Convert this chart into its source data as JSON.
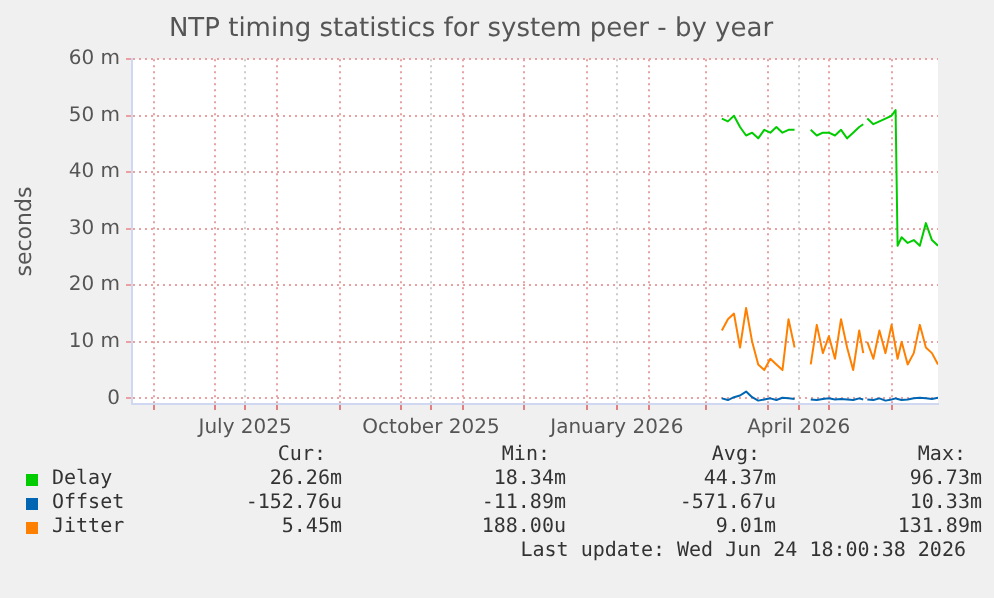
{
  "chart_data": {
    "type": "line",
    "title": "NTP timing statistics for system peer - by year",
    "ylabel": "seconds",
    "x": [
      "2026-03-09",
      "2026-03-12",
      "2026-03-15",
      "2026-03-18",
      "2026-03-21",
      "2026-03-24",
      "2026-03-27",
      "2026-03-30",
      "2026-04-02",
      "2026-04-05",
      "2026-04-08",
      "2026-04-11",
      "2026-04-14",
      "2026-04-18",
      "2026-04-22",
      "2026-04-25",
      "2026-04-28",
      "2026-05-01",
      "2026-05-04",
      "2026-05-07",
      "2026-05-10",
      "2026-05-13",
      "2026-05-16",
      "2026-05-18",
      "2026-05-19",
      "2026-05-20",
      "2026-05-23",
      "2026-05-26",
      "2026-05-29",
      "2026-06-01",
      "2026-06-03",
      "2026-06-04",
      "2026-06-06",
      "2026-06-09",
      "2026-06-12",
      "2026-06-15",
      "2026-06-18",
      "2026-06-21",
      "2026-06-24"
    ],
    "series": [
      {
        "name": "Delay",
        "color": "#00cc00",
        "values": [
          49.5,
          49,
          50,
          48,
          46.5,
          47,
          46,
          47.5,
          47,
          48,
          47,
          47.5,
          47.5,
          null,
          47.5,
          46.5,
          47,
          47,
          46.5,
          47.5,
          46,
          47,
          48,
          48.5,
          null,
          49.5,
          48.5,
          49,
          49.5,
          50,
          51,
          27,
          28.5,
          27.5,
          28,
          27,
          31,
          28,
          27
        ]
      },
      {
        "name": "Offset",
        "color": "#0066b3",
        "values": [
          0,
          -0.3,
          0.2,
          0.5,
          1.2,
          0.2,
          -0.4,
          -0.2,
          0,
          -0.3,
          0.1,
          0,
          -0.1,
          null,
          -0.2,
          -0.3,
          -0.1,
          0,
          -0.2,
          -0.1,
          -0.2,
          -0.3,
          0,
          -0.2,
          null,
          -0.2,
          -0.3,
          0,
          -0.4,
          -0.2,
          0,
          -0.1,
          -0.3,
          -0.2,
          0,
          0.1,
          0,
          -0.1,
          0.1
        ]
      },
      {
        "name": "Jitter",
        "color": "#ff8000",
        "values": [
          12,
          14,
          15,
          9,
          16,
          10,
          6,
          5,
          7,
          6,
          5,
          14,
          9,
          null,
          6,
          13,
          8,
          11,
          7,
          14,
          9,
          5,
          12,
          8,
          null,
          10,
          7,
          12,
          8,
          13,
          9,
          7,
          10,
          6,
          8,
          13,
          9,
          8,
          6
        ]
      }
    ],
    "xlim": [
      "2025-05-21",
      "2026-06-24"
    ],
    "xticks": [
      {
        "value": "2025-06-01",
        "label": null
      },
      {
        "value": "2025-07-01",
        "label": null
      },
      {
        "value": "2025-07-16",
        "label": "July 2025"
      },
      {
        "value": "2025-08-01",
        "label": null
      },
      {
        "value": "2025-09-01",
        "label": null
      },
      {
        "value": "2025-10-01",
        "label": null
      },
      {
        "value": "2025-10-16",
        "label": "October 2025"
      },
      {
        "value": "2025-11-01",
        "label": null
      },
      {
        "value": "2025-12-01",
        "label": null
      },
      {
        "value": "2026-01-01",
        "label": null
      },
      {
        "value": "2026-01-16",
        "label": "January 2026"
      },
      {
        "value": "2026-02-01",
        "label": null
      },
      {
        "value": "2026-03-01",
        "label": null
      },
      {
        "value": "2026-04-01",
        "label": null
      },
      {
        "value": "2026-04-16",
        "label": "April 2026"
      },
      {
        "value": "2026-05-01",
        "label": null
      },
      {
        "value": "2026-06-01",
        "label": null
      }
    ],
    "ylim": [
      -1,
      60
    ],
    "yticks": [
      0,
      {
        "value": 10,
        "label": "10 m"
      },
      {
        "value": 20,
        "label": "20 m"
      },
      {
        "value": 30,
        "label": "30 m"
      },
      {
        "value": 40,
        "label": "40 m"
      },
      {
        "value": 50,
        "label": "50 m"
      },
      {
        "value": 60,
        "label": "60 m"
      }
    ],
    "grid": true,
    "legend": "bottom",
    "marker": "none",
    "line_style": "solid",
    "annotations": [
      "Cur:",
      "Min:",
      "Avg:",
      "Max:",
      "26.26m",
      "18.34m",
      "44.37m",
      "96.73m",
      "-152.76u",
      "-11.89m",
      "-571.67u",
      "10.33m",
      "5.45m",
      "188.00u",
      "9.01m",
      "131.89m",
      "Last update: Wed Jun 24 18:00:38 2026"
    ]
  }
}
